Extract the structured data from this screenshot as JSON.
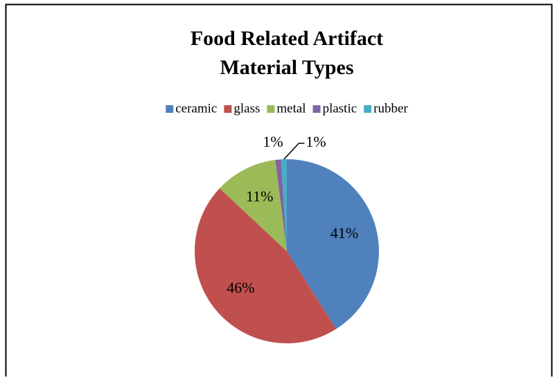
{
  "chart_data": {
    "type": "pie",
    "title": [
      "Food Related Artifact",
      "Material Types"
    ],
    "categories": [
      "ceramic",
      "glass",
      "metal",
      "plastic",
      "rubber"
    ],
    "values": [
      41,
      46,
      11,
      1,
      1
    ],
    "value_labels": [
      "41%",
      "46%",
      "11%",
      "1%",
      "1%"
    ],
    "colors": [
      "#4f81bd",
      "#c0504d",
      "#9bbb59",
      "#8064a2",
      "#4bacc6"
    ],
    "legend": "top"
  }
}
